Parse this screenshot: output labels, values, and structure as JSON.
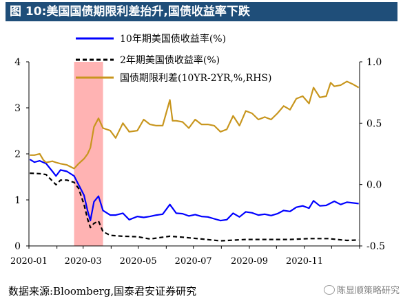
{
  "figure": {
    "title": "图 10:美国国债期限利差抬升,国债收益率下跌",
    "source": "数据来源:Bloomberg,国泰君安证券研究",
    "watermark": "陈显顺策略研究"
  },
  "chart_data": {
    "type": "line",
    "x_labels": [
      "2020-01",
      "2020-03",
      "2020-05",
      "2020-07",
      "2020-09",
      "2020-11"
    ],
    "y_left": {
      "range": [
        0,
        4
      ],
      "ticks": [
        0,
        1,
        2,
        3,
        4
      ]
    },
    "y_right": {
      "range": [
        -0.5,
        1.0
      ],
      "ticks": [
        "-0.5",
        "0.0",
        "0.5",
        "1.0"
      ]
    },
    "shaded_region": {
      "start": "2020-02-20",
      "end": "2020-03-23",
      "color": "#ff9999"
    },
    "legend_position": "top-left",
    "series": [
      {
        "name": "10年期美国债收益率(%)",
        "axis": "left",
        "color": "#0000ff",
        "style": "solid",
        "points": [
          [
            "2020-01-02",
            1.88
          ],
          [
            "2020-01-07",
            1.82
          ],
          [
            "2020-01-13",
            1.85
          ],
          [
            "2020-01-20",
            1.79
          ],
          [
            "2020-01-27",
            1.62
          ],
          [
            "2020-01-31",
            1.52
          ],
          [
            "2020-02-05",
            1.65
          ],
          [
            "2020-02-12",
            1.62
          ],
          [
            "2020-02-20",
            1.52
          ],
          [
            "2020-02-25",
            1.33
          ],
          [
            "2020-03-02",
            1.1
          ],
          [
            "2020-03-06",
            0.76
          ],
          [
            "2020-03-09",
            0.55
          ],
          [
            "2020-03-13",
            0.96
          ],
          [
            "2020-03-18",
            1.08
          ],
          [
            "2020-03-23",
            0.77
          ],
          [
            "2020-03-31",
            0.67
          ],
          [
            "2020-04-06",
            0.67
          ],
          [
            "2020-04-14",
            0.71
          ],
          [
            "2020-04-21",
            0.57
          ],
          [
            "2020-04-30",
            0.64
          ],
          [
            "2020-05-07",
            0.62
          ],
          [
            "2020-05-14",
            0.64
          ],
          [
            "2020-05-21",
            0.67
          ],
          [
            "2020-05-28",
            0.69
          ],
          [
            "2020-06-05",
            0.9
          ],
          [
            "2020-06-12",
            0.71
          ],
          [
            "2020-06-19",
            0.7
          ],
          [
            "2020-06-26",
            0.65
          ],
          [
            "2020-07-03",
            0.68
          ],
          [
            "2020-07-10",
            0.64
          ],
          [
            "2020-07-17",
            0.63
          ],
          [
            "2020-07-24",
            0.59
          ],
          [
            "2020-07-31",
            0.55
          ],
          [
            "2020-08-07",
            0.57
          ],
          [
            "2020-08-14",
            0.71
          ],
          [
            "2020-08-21",
            0.63
          ],
          [
            "2020-08-28",
            0.74
          ],
          [
            "2020-09-04",
            0.72
          ],
          [
            "2020-09-11",
            0.67
          ],
          [
            "2020-09-18",
            0.69
          ],
          [
            "2020-09-25",
            0.66
          ],
          [
            "2020-10-02",
            0.7
          ],
          [
            "2020-10-09",
            0.77
          ],
          [
            "2020-10-16",
            0.75
          ],
          [
            "2020-10-23",
            0.84
          ],
          [
            "2020-10-30",
            0.87
          ],
          [
            "2020-11-06",
            0.82
          ],
          [
            "2020-11-11",
            0.98
          ],
          [
            "2020-11-18",
            0.87
          ],
          [
            "2020-11-25",
            0.88
          ],
          [
            "2020-12-04",
            0.97
          ],
          [
            "2020-12-11",
            0.9
          ],
          [
            "2020-12-18",
            0.95
          ],
          [
            "2020-12-31",
            0.92
          ]
        ]
      },
      {
        "name": "2年期美国债收益率(%)",
        "axis": "left",
        "color": "#000000",
        "style": "dashed",
        "points": [
          [
            "2020-01-02",
            1.58
          ],
          [
            "2020-01-13",
            1.57
          ],
          [
            "2020-01-20",
            1.55
          ],
          [
            "2020-01-31",
            1.33
          ],
          [
            "2020-02-05",
            1.43
          ],
          [
            "2020-02-12",
            1.43
          ],
          [
            "2020-02-20",
            1.38
          ],
          [
            "2020-02-25",
            1.25
          ],
          [
            "2020-03-02",
            0.9
          ],
          [
            "2020-03-06",
            0.58
          ],
          [
            "2020-03-09",
            0.4
          ],
          [
            "2020-03-13",
            0.49
          ],
          [
            "2020-03-18",
            0.54
          ],
          [
            "2020-03-23",
            0.31
          ],
          [
            "2020-03-31",
            0.23
          ],
          [
            "2020-04-14",
            0.21
          ],
          [
            "2020-04-30",
            0.2
          ],
          [
            "2020-05-14",
            0.15
          ],
          [
            "2020-06-05",
            0.21
          ],
          [
            "2020-06-19",
            0.19
          ],
          [
            "2020-07-10",
            0.15
          ],
          [
            "2020-07-31",
            0.11
          ],
          [
            "2020-08-28",
            0.14
          ],
          [
            "2020-09-18",
            0.14
          ],
          [
            "2020-10-16",
            0.14
          ],
          [
            "2020-11-06",
            0.16
          ],
          [
            "2020-11-27",
            0.16
          ],
          [
            "2020-12-18",
            0.12
          ],
          [
            "2020-12-31",
            0.13
          ]
        ]
      },
      {
        "name": "国债期限利差(10YR-2YR,%,RHS)",
        "axis": "right",
        "color": "#c8961e",
        "style": "solid",
        "points": [
          [
            "2020-01-02",
            0.24
          ],
          [
            "2020-01-07",
            0.24
          ],
          [
            "2020-01-13",
            0.25
          ],
          [
            "2020-01-17",
            0.2
          ],
          [
            "2020-01-20",
            0.18
          ],
          [
            "2020-01-27",
            0.19
          ],
          [
            "2020-01-31",
            0.18
          ],
          [
            "2020-02-05",
            0.17
          ],
          [
            "2020-02-12",
            0.16
          ],
          [
            "2020-02-20",
            0.13
          ],
          [
            "2020-02-25",
            0.17
          ],
          [
            "2020-03-02",
            0.21
          ],
          [
            "2020-03-06",
            0.25
          ],
          [
            "2020-03-09",
            0.3
          ],
          [
            "2020-03-13",
            0.47
          ],
          [
            "2020-03-18",
            0.54
          ],
          [
            "2020-03-23",
            0.46
          ],
          [
            "2020-03-31",
            0.44
          ],
          [
            "2020-04-06",
            0.38
          ],
          [
            "2020-04-14",
            0.5
          ],
          [
            "2020-04-21",
            0.43
          ],
          [
            "2020-04-30",
            0.44
          ],
          [
            "2020-05-07",
            0.53
          ],
          [
            "2020-05-14",
            0.49
          ],
          [
            "2020-05-21",
            0.48
          ],
          [
            "2020-05-28",
            0.48
          ],
          [
            "2020-06-05",
            0.69
          ],
          [
            "2020-06-08",
            0.52
          ],
          [
            "2020-06-12",
            0.52
          ],
          [
            "2020-06-19",
            0.51
          ],
          [
            "2020-06-26",
            0.46
          ],
          [
            "2020-07-03",
            0.53
          ],
          [
            "2020-07-10",
            0.49
          ],
          [
            "2020-07-17",
            0.49
          ],
          [
            "2020-07-24",
            0.48
          ],
          [
            "2020-07-31",
            0.43
          ],
          [
            "2020-08-07",
            0.45
          ],
          [
            "2020-08-14",
            0.56
          ],
          [
            "2020-08-21",
            0.48
          ],
          [
            "2020-08-28",
            0.6
          ],
          [
            "2020-09-04",
            0.58
          ],
          [
            "2020-09-11",
            0.53
          ],
          [
            "2020-09-18",
            0.55
          ],
          [
            "2020-09-25",
            0.53
          ],
          [
            "2020-10-02",
            0.58
          ],
          [
            "2020-10-09",
            0.64
          ],
          [
            "2020-10-16",
            0.61
          ],
          [
            "2020-10-23",
            0.7
          ],
          [
            "2020-10-30",
            0.72
          ],
          [
            "2020-11-06",
            0.66
          ],
          [
            "2020-11-11",
            0.79
          ],
          [
            "2020-11-18",
            0.71
          ],
          [
            "2020-11-25",
            0.72
          ],
          [
            "2020-11-30",
            0.83
          ],
          [
            "2020-12-04",
            0.8
          ],
          [
            "2020-12-11",
            0.81
          ],
          [
            "2020-12-18",
            0.84
          ],
          [
            "2020-12-24",
            0.82
          ],
          [
            "2020-12-31",
            0.79
          ]
        ]
      }
    ]
  }
}
